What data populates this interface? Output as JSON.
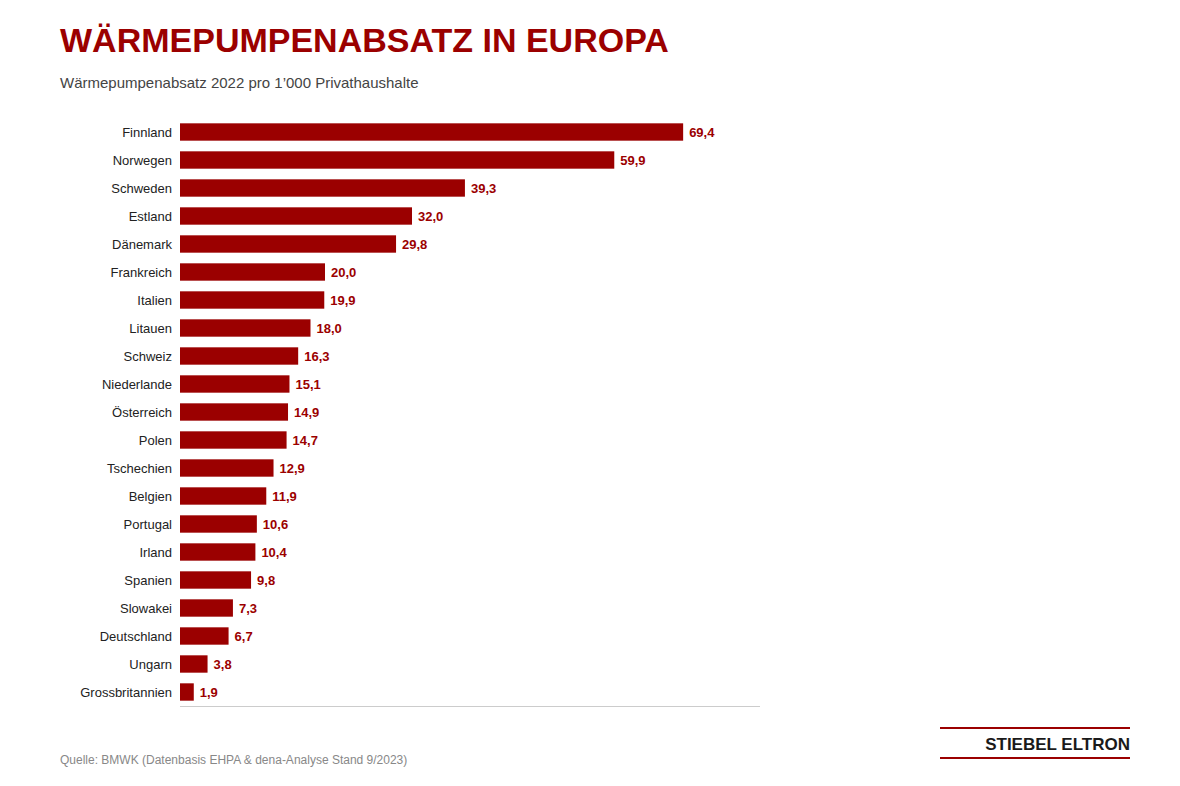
{
  "chart_data": {
    "type": "bar",
    "orientation": "horizontal",
    "title": "WÄRMEPUMPENABSATZ IN EUROPA",
    "subtitle": "Wärmepumpenabsatz 2022 pro 1’000 Privathaushalte",
    "annotations": [
      "Quelle: BMWK (Datenbasis EHPA & dena-Analyse Stand 9/2023)",
      "STIEBEL ELTRON"
    ],
    "categories": [
      "Finnland",
      "Norwegen",
      "Schweden",
      "Estland",
      "Dänemark",
      "Frankreich",
      "Italien",
      "Litauen",
      "Schweiz",
      "Niederlande",
      "Österreich",
      "Polen",
      "Tschechien",
      "Belgien",
      "Portugal",
      "Irland",
      "Spanien",
      "Slowakei",
      "Deutschland",
      "Ungarn",
      "Grossbritannien"
    ],
    "values": [
      69.4,
      59.9,
      39.3,
      32.0,
      29.8,
      20.0,
      19.9,
      18.0,
      16.3,
      15.1,
      14.9,
      14.7,
      12.9,
      11.9,
      10.6,
      10.4,
      9.8,
      7.3,
      6.7,
      3.8,
      1.9
    ],
    "value_labels": [
      "69,4",
      "59,9",
      "39,3",
      "32,0",
      "29,8",
      "20,0",
      "19,9",
      "18,0",
      "16,3",
      "15,1",
      "14,9",
      "14,7",
      "12,9",
      "11,9",
      "10,6",
      "10,4",
      "9,8",
      "7,3",
      "6,7",
      "3,8",
      "1,9"
    ],
    "color": "#9B0000",
    "xlim": [
      0,
      80
    ],
    "data_labels": true,
    "tick_labels": "y",
    "grid": false
  }
}
